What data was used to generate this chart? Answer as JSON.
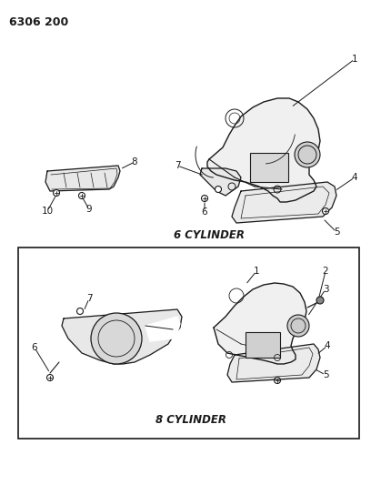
{
  "title": "6306 200",
  "background_color": "#ffffff",
  "top_label": "6 CYLINDER",
  "bottom_label": "8 CYLINDER",
  "lc": "#1a1a1a",
  "tc": "#1a1a1a",
  "figsize": [
    4.08,
    5.33
  ],
  "dpi": 100
}
